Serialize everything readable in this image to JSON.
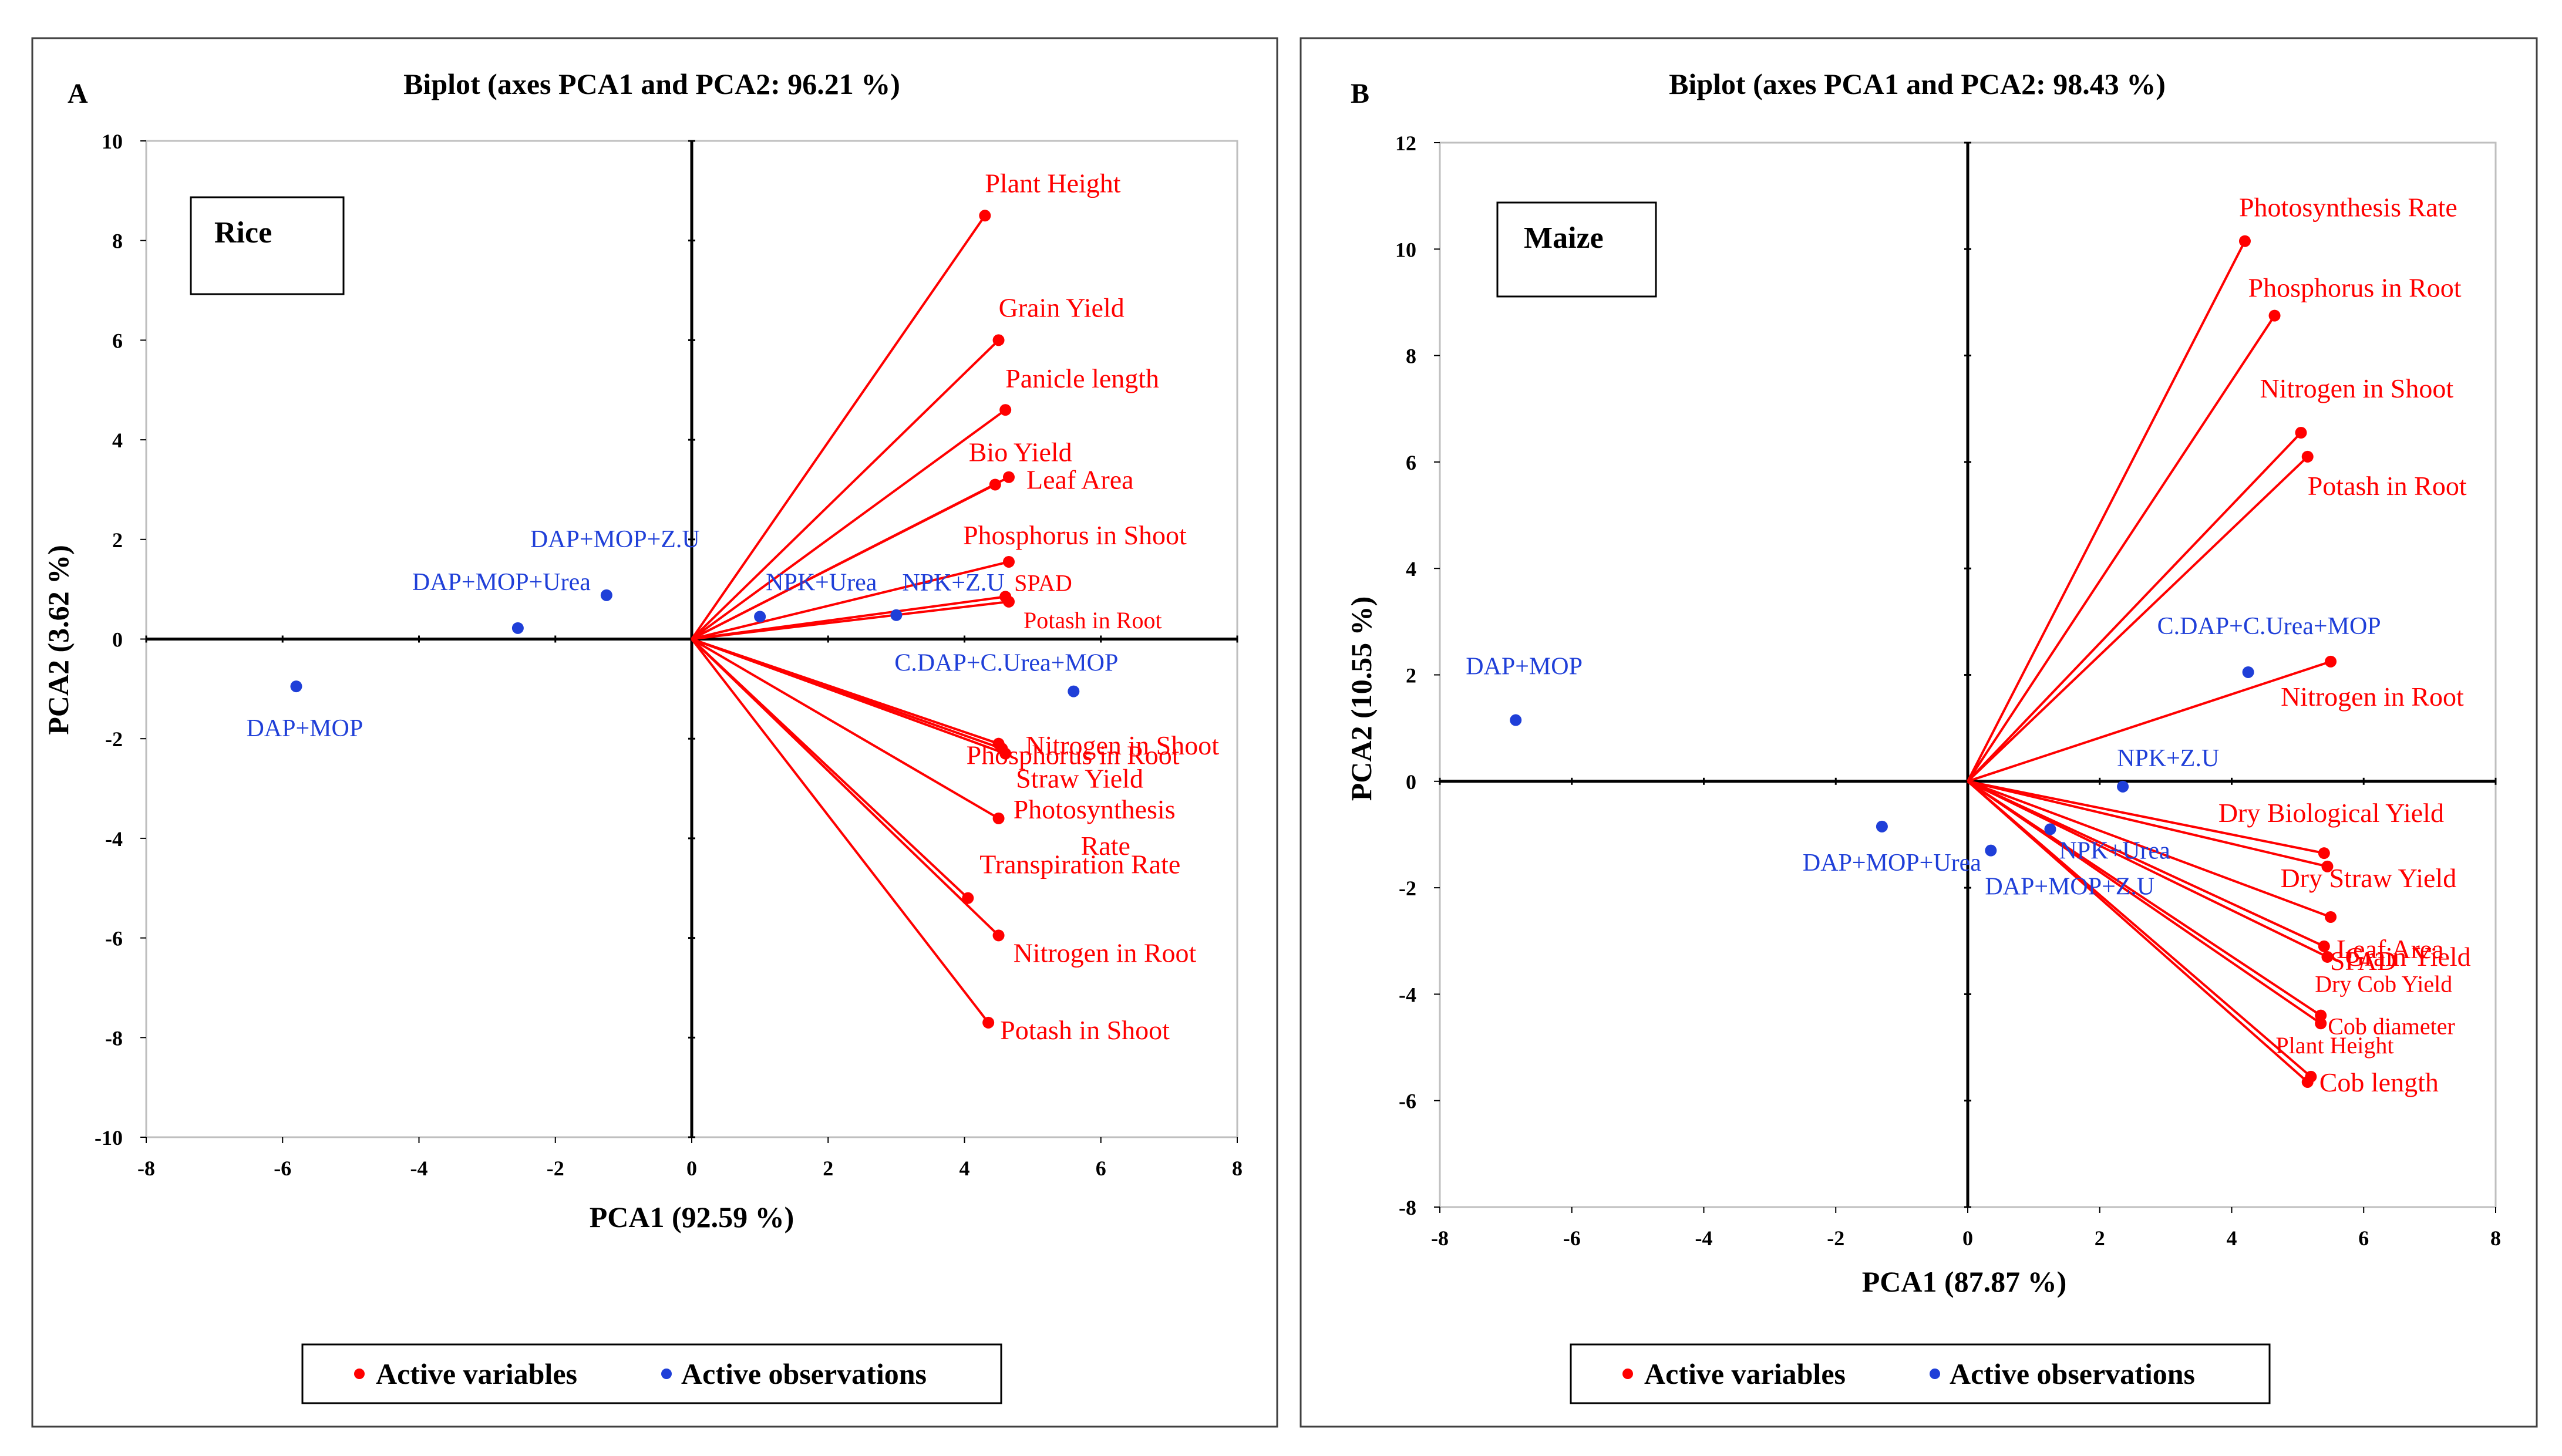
{
  "colors": {
    "variables": "#ff0000",
    "observations": "#1f3fd8",
    "axis": "#000000",
    "frame": "#404040"
  },
  "chart_data": [
    {
      "type": "scatter",
      "subtype": "pca-biplot",
      "panel": "A",
      "title": "Biplot (axes PCA1 and PCA2: 96.21 %)",
      "crop_label": "Rice",
      "xlabel": "PCA1 (92.59 %)",
      "ylabel": "PCA2 (3.62 %)",
      "xlim": [
        -8,
        8
      ],
      "ylim": [
        -10,
        10
      ],
      "xticks": [
        -8,
        -6,
        -4,
        -2,
        0,
        2,
        4,
        6,
        8
      ],
      "yticks": [
        -10,
        -8,
        -6,
        -4,
        -2,
        0,
        2,
        4,
        6,
        8,
        10
      ],
      "legend": [
        "Active variables",
        "Active observations"
      ],
      "variables": [
        {
          "name": "Plant Height",
          "x": 4.3,
          "y": 8.5
        },
        {
          "name": "Grain Yield",
          "x": 4.5,
          "y": 6.0
        },
        {
          "name": "Panicle length",
          "x": 4.6,
          "y": 4.6
        },
        {
          "name": "Bio Yield",
          "x": 4.45,
          "y": 3.1
        },
        {
          "name": "Leaf Area",
          "x": 4.65,
          "y": 3.25
        },
        {
          "name": "Phosphorus in Shoot",
          "x": 4.65,
          "y": 1.55
        },
        {
          "name": "SPAD",
          "x": 4.6,
          "y": 0.85
        },
        {
          "name": "Potash in Root",
          "x": 4.65,
          "y": 0.75
        },
        {
          "name": "Phosphorus in Root",
          "x": 4.5,
          "y": -2.1
        },
        {
          "name": "Nitrogen in Shoot",
          "x": 4.55,
          "y": -2.2
        },
        {
          "name": "Straw Yield",
          "x": 4.6,
          "y": -2.3
        },
        {
          "name": "Photosynthesis Rate",
          "x": 4.5,
          "y": -3.6
        },
        {
          "name": "Transpiration Rate",
          "x": 4.05,
          "y": -5.2
        },
        {
          "name": "Nitrogen in Root",
          "x": 4.5,
          "y": -5.95
        },
        {
          "name": "Potash in Shoot",
          "x": 4.35,
          "y": -7.7
        }
      ],
      "observations": [
        {
          "name": "DAP+MOP",
          "x": -5.8,
          "y": -0.95
        },
        {
          "name": "DAP+MOP+Urea",
          "x": -2.55,
          "y": 0.22
        },
        {
          "name": "DAP+MOP+Z.U",
          "x": -1.25,
          "y": 0.88
        },
        {
          "name": "NPK+Urea",
          "x": 1.0,
          "y": 0.45
        },
        {
          "name": "NPK+Z.U",
          "x": 3.0,
          "y": 0.48
        },
        {
          "name": "C.DAP+C.Urea+MOP",
          "x": 5.6,
          "y": -1.05
        }
      ]
    },
    {
      "type": "scatter",
      "subtype": "pca-biplot",
      "panel": "B",
      "title": "Biplot (axes PCA1 and PCA2: 98.43 %)",
      "crop_label": "Maize",
      "xlabel": "PCA1 (87.87 %)",
      "ylabel": "PCA2 (10.55 %)",
      "xlim": [
        -8,
        8
      ],
      "ylim": [
        -8,
        12
      ],
      "xticks": [
        -8,
        -6,
        -4,
        -2,
        0,
        2,
        4,
        6,
        8
      ],
      "yticks": [
        -8,
        -6,
        -4,
        -2,
        0,
        2,
        4,
        6,
        8,
        10,
        12
      ],
      "legend": [
        "Active variables",
        "Active observations"
      ],
      "variables": [
        {
          "name": "Photosynthesis Rate",
          "x": 4.2,
          "y": 10.15
        },
        {
          "name": "Phosphorus in Root",
          "x": 4.65,
          "y": 8.75
        },
        {
          "name": "Nitrogen in Shoot",
          "x": 5.05,
          "y": 6.55
        },
        {
          "name": "Potash in Root",
          "x": 5.15,
          "y": 6.1
        },
        {
          "name": "Nitrogen in Root",
          "x": 5.5,
          "y": 2.25
        },
        {
          "name": "Dry Biological Yield",
          "x": 5.4,
          "y": -1.35
        },
        {
          "name": "Dry Straw Yield",
          "x": 5.45,
          "y": -1.6
        },
        {
          "name": "Leaf Area",
          "x": 5.5,
          "y": -2.55
        },
        {
          "name": "SPAD",
          "x": 5.4,
          "y": -3.1
        },
        {
          "name": "Grain Yield",
          "x": 5.45,
          "y": -3.3
        },
        {
          "name": "Dry Cob Yield",
          "x": 5.35,
          "y": -4.4
        },
        {
          "name": "Cob diameter",
          "x": 5.35,
          "y": -4.55
        },
        {
          "name": "Plant Height",
          "x": 5.2,
          "y": -5.55
        },
        {
          "name": "Cob length",
          "x": 5.15,
          "y": -5.65
        }
      ],
      "observations": [
        {
          "name": "DAP+MOP",
          "x": -6.85,
          "y": 1.15
        },
        {
          "name": "DAP+MOP+Urea",
          "x": -1.3,
          "y": -0.85
        },
        {
          "name": "DAP+MOP+Z.U",
          "x": 0.35,
          "y": -1.3
        },
        {
          "name": "NPK+Urea",
          "x": 1.25,
          "y": -0.9
        },
        {
          "name": "NPK+Z.U",
          "x": 2.35,
          "y": -0.1
        },
        {
          "name": "C.DAP+C.Urea+MOP",
          "x": 4.25,
          "y": 2.05
        }
      ]
    }
  ]
}
